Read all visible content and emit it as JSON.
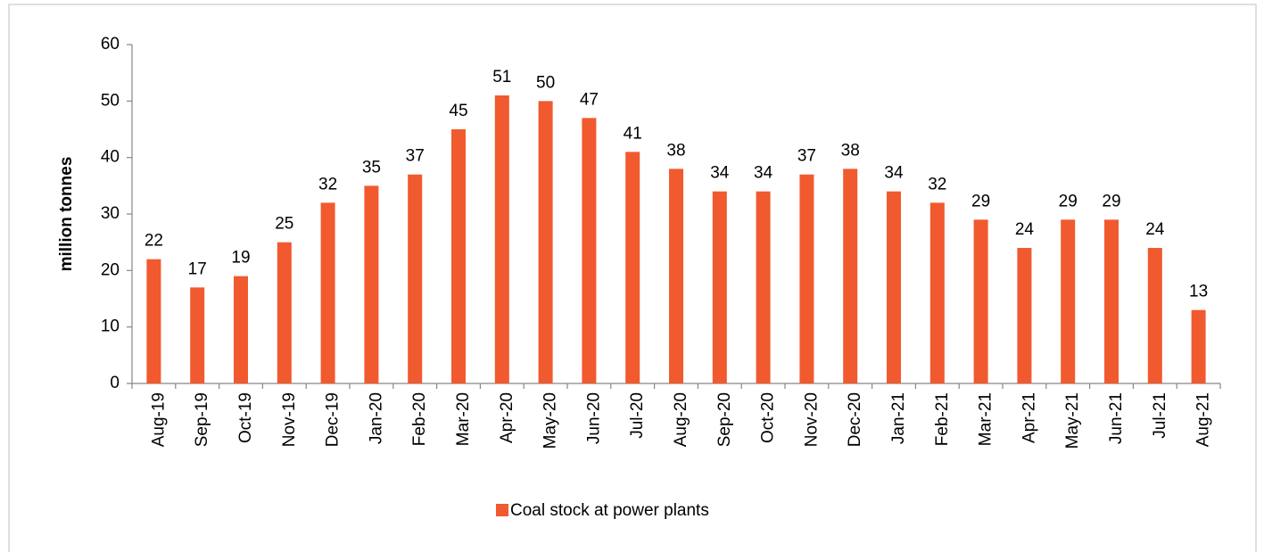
{
  "chart_data": {
    "type": "bar",
    "y_label": "million tonnes",
    "categories": [
      "Aug-19",
      "Sep-19",
      "Oct-19",
      "Nov-19",
      "Dec-19",
      "Jan-20",
      "Feb-20",
      "Mar-20",
      "Apr-20",
      "May-20",
      "Jun-20",
      "Jul-20",
      "Aug-20",
      "Sep-20",
      "Oct-20",
      "Nov-20",
      "Dec-20",
      "Jan-21",
      "Feb-21",
      "Mar-21",
      "Apr-21",
      "May-21",
      "Jun-21",
      "Jul-21",
      "Aug-21"
    ],
    "series": [
      {
        "name": "Coal stock at power plants",
        "color": "#f15a2e",
        "values": [
          22,
          17,
          19,
          25,
          32,
          35,
          37,
          45,
          51,
          50,
          47,
          41,
          38,
          34,
          34,
          37,
          38,
          34,
          32,
          29,
          24,
          29,
          29,
          24,
          13
        ]
      }
    ],
    "ylim": [
      0,
      60
    ],
    "yticks": [
      0,
      10,
      20,
      30,
      40,
      50,
      60
    ],
    "grid": false,
    "legend": "bottom"
  }
}
